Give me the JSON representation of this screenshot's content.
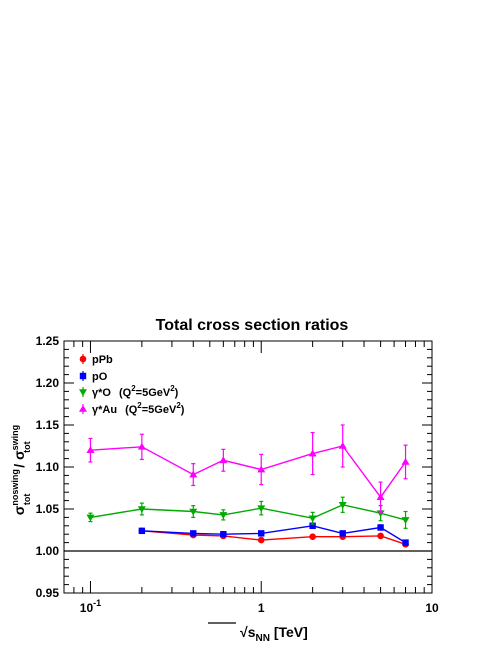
{
  "chart_data": {
    "type": "line",
    "title": "Total cross section ratios",
    "xlabel_sqrt": "s",
    "xlabel_sub": "NN",
    "xlabel_unit": " [TeV]",
    "ylabel_parts": {
      "num": "σ",
      "num_sup": "noswing",
      "num_sub": "tot",
      "slash": " / ",
      "den": "σ",
      "den_sup": "swing",
      "den_sub": "tot"
    },
    "x_scale": "log",
    "xlim": [
      0.07,
      10
    ],
    "ylim": [
      0.95,
      1.25
    ],
    "x_ticks": [
      {
        "value": 0.1,
        "label": "10",
        "sup": "-1"
      },
      {
        "value": 1,
        "label": "1",
        "sup": ""
      },
      {
        "value": 10,
        "label": "10",
        "sup": ""
      }
    ],
    "y_ticks": [
      "0.95",
      "1.00",
      "1.05",
      "1.10",
      "1.15",
      "1.20",
      "1.25"
    ],
    "reference_line": 1.0,
    "legend_position": "top-left",
    "series": [
      {
        "name": "pPb",
        "color": "#ff0000",
        "marker": "circle",
        "points": [
          {
            "x": 0.2,
            "y": 1.024,
            "err": 0.002
          },
          {
            "x": 0.4,
            "y": 1.019,
            "err": 0.002
          },
          {
            "x": 0.6,
            "y": 1.018,
            "err": 0.002
          },
          {
            "x": 1.0,
            "y": 1.013,
            "err": 0.002
          },
          {
            "x": 2.0,
            "y": 1.017,
            "err": 0.002
          },
          {
            "x": 3.0,
            "y": 1.017,
            "err": 0.002
          },
          {
            "x": 5.0,
            "y": 1.018,
            "err": 0.002
          },
          {
            "x": 7.0,
            "y": 1.008,
            "err": 0.002
          }
        ]
      },
      {
        "name": "pO",
        "color": "#0000ff",
        "marker": "square",
        "points": [
          {
            "x": 0.2,
            "y": 1.024,
            "err": 0.002
          },
          {
            "x": 0.4,
            "y": 1.021,
            "err": 0.002
          },
          {
            "x": 0.6,
            "y": 1.02,
            "err": 0.002
          },
          {
            "x": 1.0,
            "y": 1.021,
            "err": 0.002
          },
          {
            "x": 2.0,
            "y": 1.03,
            "err": 0.003
          },
          {
            "x": 3.0,
            "y": 1.021,
            "err": 0.002
          },
          {
            "x": 5.0,
            "y": 1.028,
            "err": 0.003
          },
          {
            "x": 7.0,
            "y": 1.01,
            "err": 0.002
          }
        ]
      },
      {
        "name_main": "γ*O",
        "name_q": "(Q",
        "name_q_sup": "2",
        "name_q_mid": "=5GeV",
        "name_q_sup2": "2",
        "name_q_end": ")",
        "color": "#00aa00",
        "marker": "triangle-down",
        "points": [
          {
            "x": 0.1,
            "y": 1.04,
            "err": 0.005
          },
          {
            "x": 0.2,
            "y": 1.05,
            "err": 0.007
          },
          {
            "x": 0.4,
            "y": 1.047,
            "err": 0.007
          },
          {
            "x": 0.6,
            "y": 1.043,
            "err": 0.006
          },
          {
            "x": 1.0,
            "y": 1.051,
            "err": 0.008
          },
          {
            "x": 2.0,
            "y": 1.039,
            "err": 0.007
          },
          {
            "x": 3.0,
            "y": 1.055,
            "err": 0.009
          },
          {
            "x": 5.0,
            "y": 1.045,
            "err": 0.009
          },
          {
            "x": 7.0,
            "y": 1.037,
            "err": 0.01
          }
        ]
      },
      {
        "name_main": "γ*Au",
        "name_q": "(Q",
        "name_q_sup": "2",
        "name_q_mid": "=5GeV",
        "name_q_sup2": "2",
        "name_q_end": ")",
        "color": "#ff00ff",
        "marker": "triangle-up",
        "points": [
          {
            "x": 0.1,
            "y": 1.12,
            "err": 0.014
          },
          {
            "x": 0.2,
            "y": 1.124,
            "err": 0.015
          },
          {
            "x": 0.4,
            "y": 1.091,
            "err": 0.013
          },
          {
            "x": 0.6,
            "y": 1.108,
            "err": 0.013
          },
          {
            "x": 1.0,
            "y": 1.097,
            "err": 0.018
          },
          {
            "x": 2.0,
            "y": 1.116,
            "err": 0.025
          },
          {
            "x": 3.0,
            "y": 1.125,
            "err": 0.025
          },
          {
            "x": 5.0,
            "y": 1.064,
            "err": 0.018
          },
          {
            "x": 7.0,
            "y": 1.106,
            "err": 0.02
          }
        ]
      }
    ]
  }
}
